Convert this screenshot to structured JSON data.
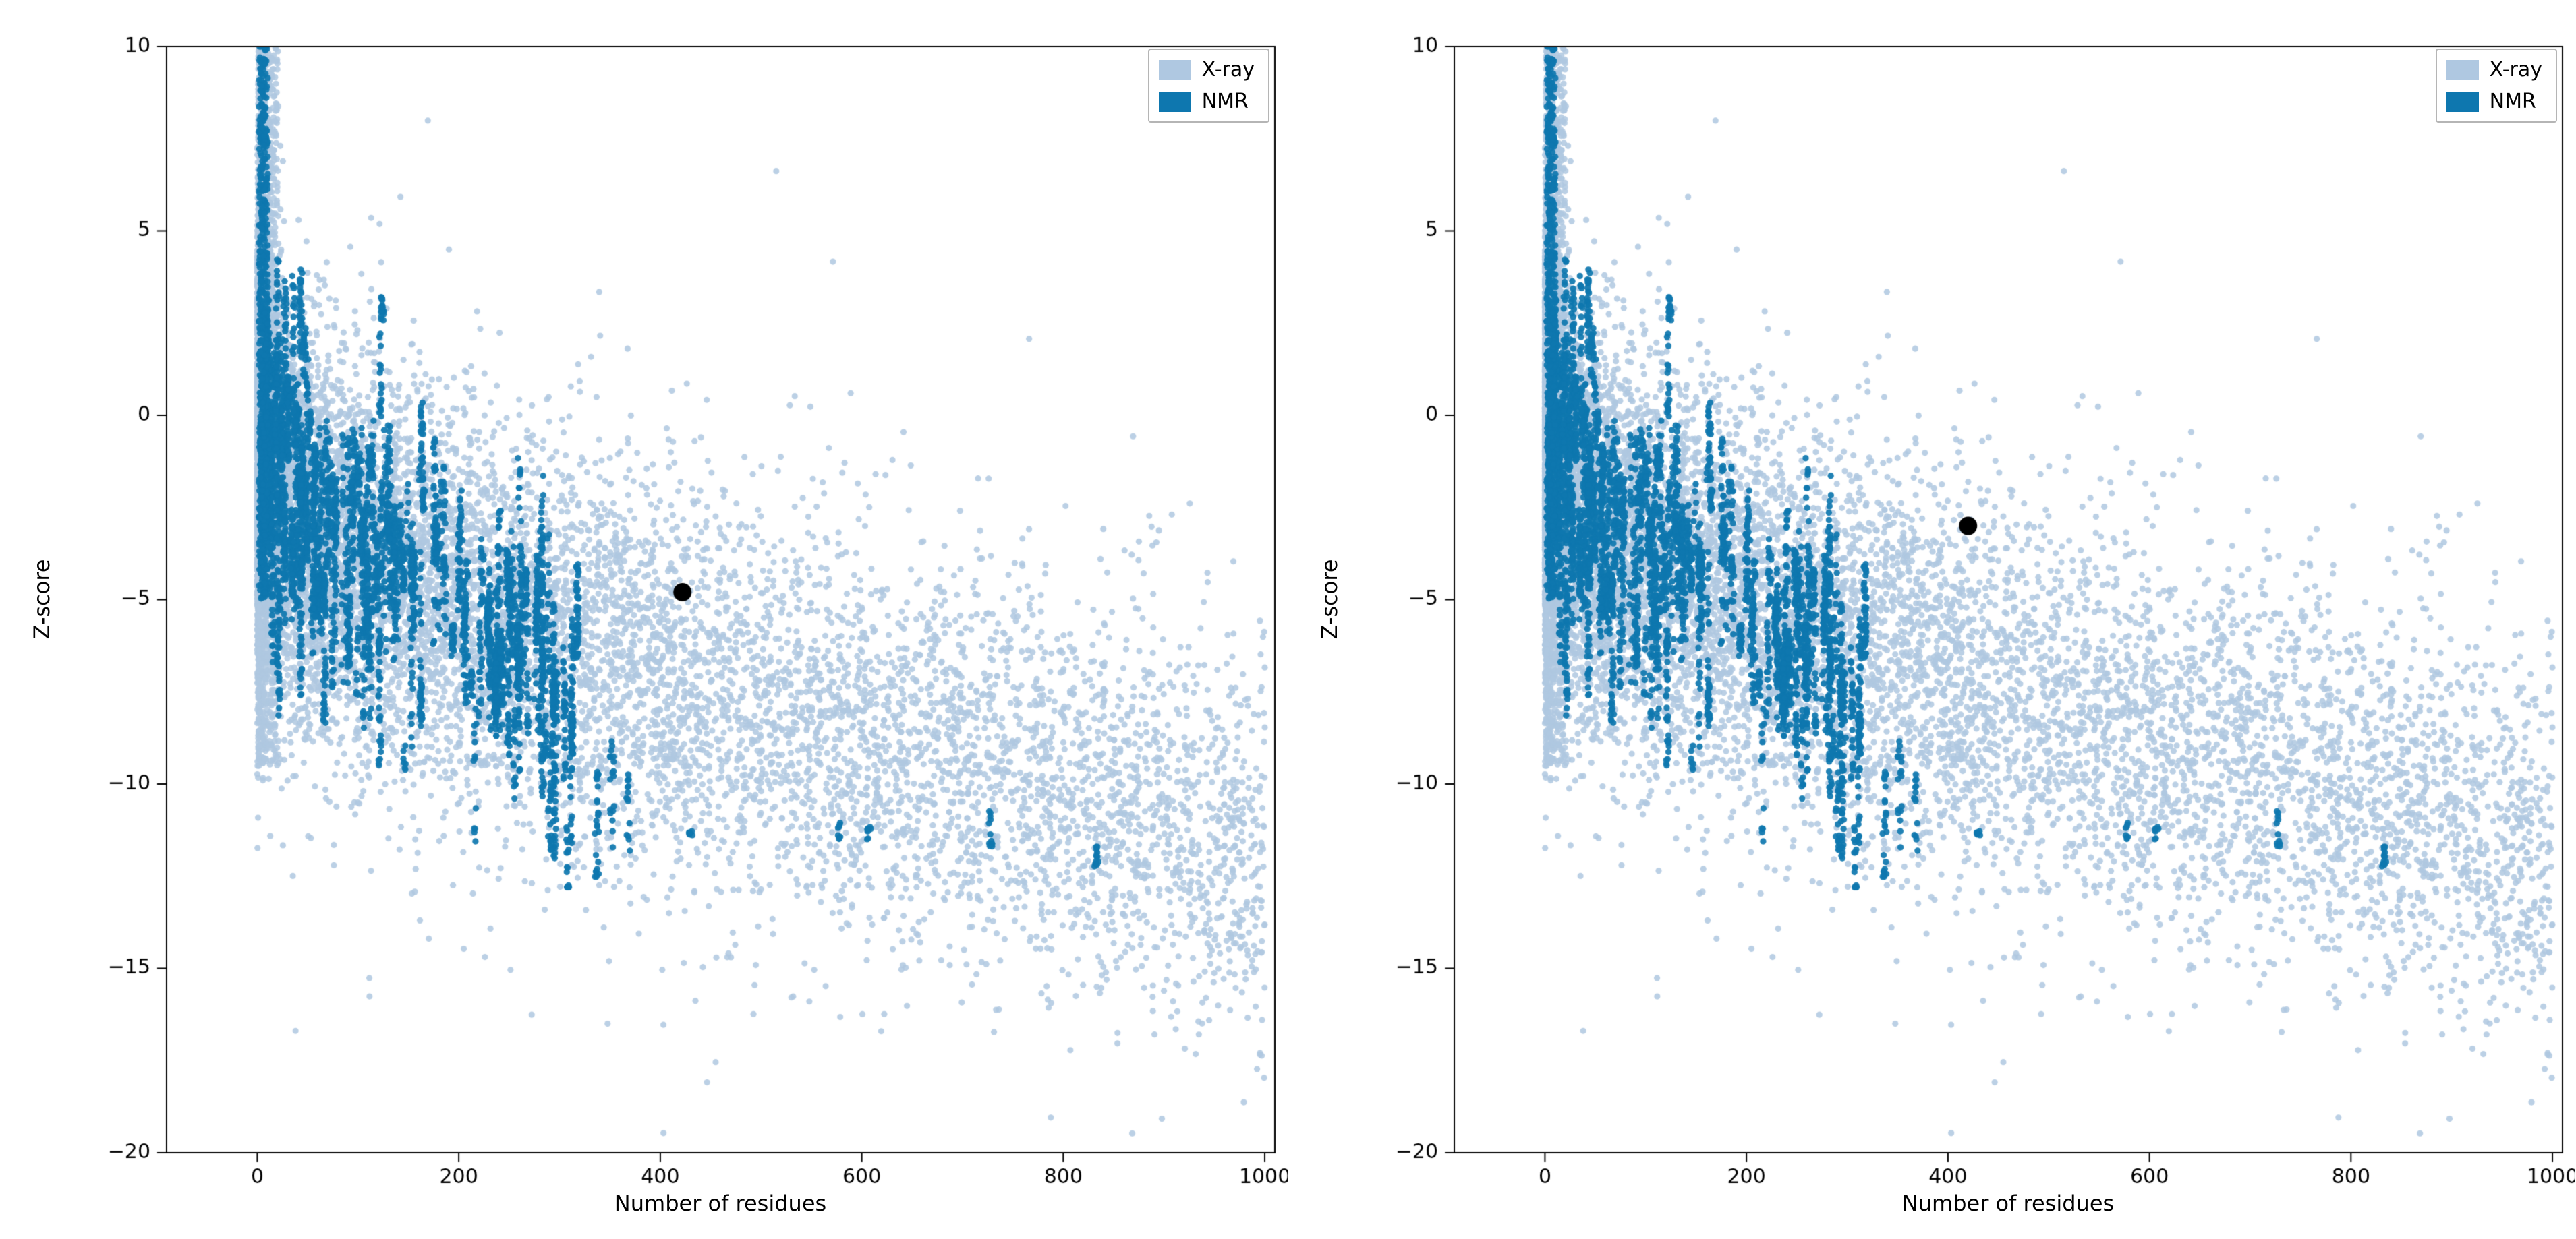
{
  "figure": {
    "background": "#ffffff",
    "description": "Two-panel scatter plot of Z-score versus number of residues for PDB structures (X-ray and NMR background clouds) with a single highlighted query structure (black dot) in each panel"
  },
  "colors": {
    "xray": "#afc8e1",
    "nmr": "#0e77af",
    "highlight": "#000000",
    "axis": "#000000",
    "text": "#000000",
    "legend_border": "#b5b5b5"
  },
  "chart_data": [
    {
      "type": "scatter",
      "title": "",
      "xlabel": "Number of residues",
      "ylabel": "Z-score",
      "xlim": [
        -90,
        1010
      ],
      "ylim": [
        -20,
        10
      ],
      "grid": false,
      "legend_position": "upper right",
      "xtick_values": [
        0,
        200,
        400,
        600,
        800,
        1000
      ],
      "xtick_labels": [
        "0",
        "200",
        "400",
        "600",
        "800",
        "1000"
      ],
      "ytick_values": [
        10,
        5,
        0,
        -5,
        -10,
        -15,
        -20
      ],
      "ytick_labels": [
        "10",
        "5",
        "0",
        "−5",
        "−10",
        "−15",
        "−20"
      ],
      "legend": [
        {
          "label": "X-ray",
          "color_key": "xray"
        },
        {
          "label": "NMR",
          "color_key": "nmr"
        }
      ],
      "series": [
        {
          "name": "X-ray",
          "color_key": "xray",
          "source": "background_model.xray"
        },
        {
          "name": "NMR",
          "color_key": "nmr",
          "source": "background_model.nmr"
        }
      ],
      "highlight_point": {
        "x": 422,
        "y": -4.8
      }
    },
    {
      "type": "scatter",
      "title": "",
      "xlabel": "Number of residues",
      "ylabel": "Z-score",
      "xlim": [
        -90,
        1010
      ],
      "ylim": [
        -20,
        10
      ],
      "grid": false,
      "legend_position": "upper right",
      "xtick_values": [
        0,
        200,
        400,
        600,
        800,
        1000
      ],
      "xtick_labels": [
        "0",
        "200",
        "400",
        "600",
        "800",
        "1000"
      ],
      "ytick_values": [
        10,
        5,
        0,
        -5,
        -10,
        -15,
        -20
      ],
      "ytick_labels": [
        "10",
        "5",
        "0",
        "−5",
        "−10",
        "−15",
        "−20"
      ],
      "legend": [
        {
          "label": "X-ray",
          "color_key": "xray"
        },
        {
          "label": "NMR",
          "color_key": "nmr"
        }
      ],
      "series": [
        {
          "name": "X-ray",
          "color_key": "xray",
          "source": "background_model.xray"
        },
        {
          "name": "NMR",
          "color_key": "nmr",
          "source": "background_model.nmr"
        }
      ],
      "highlight_point": {
        "x": 420,
        "y": -3.0
      }
    }
  ],
  "background_model": {
    "note": "Identical background point clouds in both panels; clouds estimated from pixels and regenerated procedurally from these parameters",
    "seed": 42,
    "xray": {
      "count": 11000,
      "x_scale": 1000,
      "x_power": 2.6,
      "y_sd": 2.7,
      "y_center": [
        [
          0,
          -1
        ],
        [
          50,
          -3
        ],
        [
          100,
          -3.8
        ],
        [
          200,
          -5
        ],
        [
          300,
          -6
        ],
        [
          400,
          -7
        ],
        [
          500,
          -7.8
        ],
        [
          600,
          -8.6
        ],
        [
          700,
          -9.3
        ],
        [
          800,
          -10.2
        ],
        [
          900,
          -11
        ],
        [
          1000,
          -12
        ]
      ],
      "wide_count": 260,
      "wide_sd_mult": 2.3,
      "spike": {
        "count": 1400,
        "x_min": 1,
        "x_range": 20,
        "x_power": 2,
        "y_min": -9.5,
        "y_range": 19.5
      }
    },
    "nmr": {
      "streak_count": 235,
      "x_min": 4,
      "x_range": 318,
      "x_power": 1.6,
      "center_sd": 2.0,
      "half_min": 0.3,
      "half_range": 1.9,
      "pts_min": 6,
      "pts_range": 30,
      "y_floor": -12.8,
      "y_center": [
        [
          0,
          -0.5
        ],
        [
          50,
          -2.5
        ],
        [
          100,
          -3.5
        ],
        [
          150,
          -4.2
        ],
        [
          200,
          -5
        ],
        [
          250,
          -6
        ],
        [
          300,
          -7
        ],
        [
          350,
          -8
        ],
        [
          400,
          -8.8
        ]
      ],
      "spike": {
        "count": 520,
        "x_min": 1.5,
        "x_range": 9,
        "y_min": -5,
        "y_range": 15.2
      },
      "outlier_streaks": [
        [
          337,
          -9.5,
          -12.6,
          26
        ],
        [
          352,
          -8.8,
          -11.8,
          18
        ],
        [
          368,
          -9.4,
          -12.3,
          14
        ],
        [
          430,
          -11.15,
          -11.5,
          6
        ],
        [
          578,
          -11.05,
          -11.5,
          8
        ],
        [
          607,
          -11.15,
          -11.6,
          7
        ],
        [
          728,
          -10.7,
          -11.7,
          12
        ],
        [
          833,
          -11.7,
          -12.4,
          14
        ]
      ]
    }
  }
}
